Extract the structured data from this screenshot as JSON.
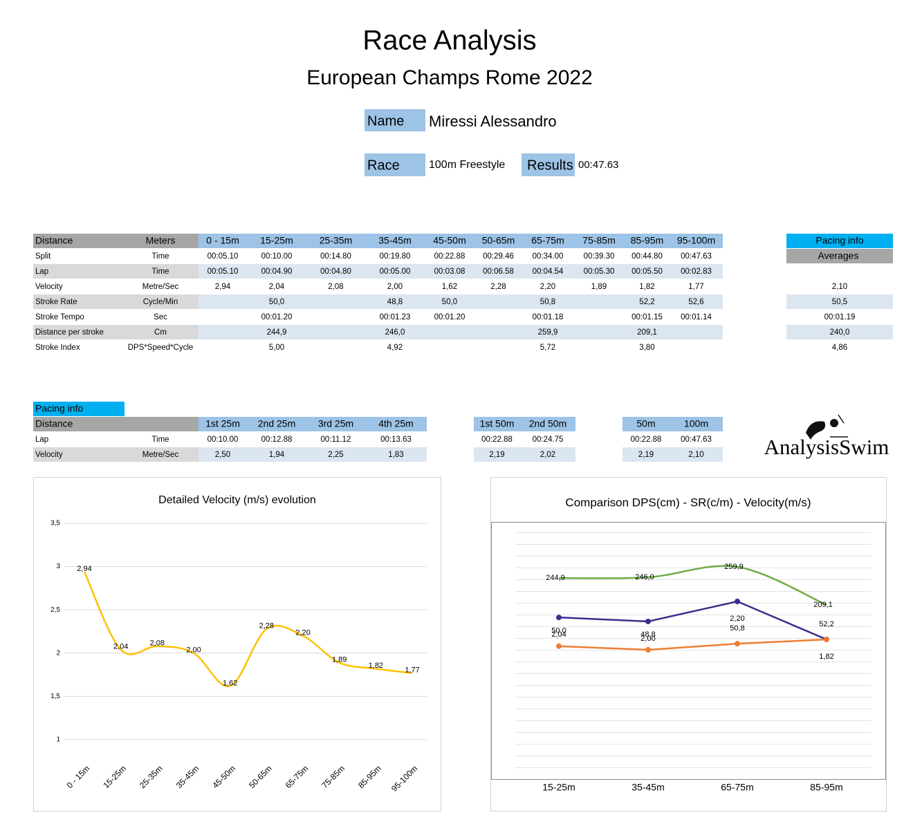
{
  "header": {
    "title": "Race Analysis",
    "subtitle": "European Champs Rome 2022"
  },
  "athlete": {
    "name_label": "Name",
    "name": "Miressi Alessandro",
    "race_label": "Race",
    "race": "100m Freestyle",
    "results_label": "Results",
    "results": "00:47.63"
  },
  "main_table": {
    "header": [
      "Distance",
      "Meters",
      "0 - 15m",
      "15-25m",
      "25-35m",
      "35-45m",
      "45-50m",
      "50-65m",
      "65-75m",
      "75-85m",
      "85-95m",
      "95-100m"
    ],
    "rows": [
      {
        "label": "Split",
        "unit": "Time",
        "cells": [
          "00:05.10",
          "00:10.00",
          "00:14.80",
          "00:19.80",
          "00:22.88",
          "00:29.46",
          "00:34.00",
          "00:39.30",
          "00:44.80",
          "00:47.63"
        ]
      },
      {
        "label": "Lap",
        "unit": "Time",
        "cells": [
          "00:05.10",
          "00:04.90",
          "00:04.80",
          "00:05.00",
          "00:03.08",
          "00:06.58",
          "00:04.54",
          "00:05.30",
          "00:05.50",
          "00:02.83"
        ]
      },
      {
        "label": "Velocity",
        "unit": "Metre/Sec",
        "cells": [
          "2,94",
          "2,04",
          "2,08",
          "2,00",
          "1,62",
          "2,28",
          "2,20",
          "1,89",
          "1,82",
          "1,77"
        ]
      },
      {
        "label": "Stroke Rate",
        "unit": "Cycle/Min",
        "cells": [
          null,
          "50,0",
          null,
          "48,8",
          "50,0",
          null,
          "50,8",
          null,
          "52,2",
          "52,6"
        ]
      },
      {
        "label": "Stroke Tempo",
        "unit": "Sec",
        "cells": [
          null,
          "00:01.20",
          null,
          "00:01.23",
          "00:01.20",
          null,
          "00:01.18",
          null,
          "00:01.15",
          "00:01.14"
        ]
      },
      {
        "label": "Distance per stroke",
        "unit": "Cm",
        "cells": [
          null,
          "244,9",
          null,
          "246,0",
          null,
          null,
          "259,9",
          null,
          "209,1",
          null
        ]
      },
      {
        "label": "Stroke Index",
        "unit": "DPS*Speed*Cycle",
        "cells": [
          null,
          "5,00",
          null,
          "4,92",
          null,
          null,
          "5,72",
          null,
          "3,80",
          null
        ]
      }
    ],
    "averages": {
      "title": "Pacing info",
      "subtitle": "Averages",
      "values": [
        null,
        null,
        "2,10",
        "50,5",
        "00:01.19",
        "240,0",
        "4,86"
      ]
    }
  },
  "pacing_table": {
    "title": "Pacing info",
    "header": {
      "label": "Distance",
      "quarters": [
        "1st 25m",
        "2nd 25m",
        "3rd 25m",
        "4th 25m"
      ],
      "halves": [
        "1st 50m",
        "2nd 50m"
      ],
      "totals": [
        "50m",
        "100m"
      ]
    },
    "rows": [
      {
        "label": "Lap",
        "unit": "Time",
        "quarters": [
          "00:10.00",
          "00:12.88",
          "00:11.12",
          "00:13.63"
        ],
        "halves": [
          "00:22.88",
          "00:24.75"
        ],
        "totals": [
          "00:22.88",
          "00:47.63"
        ]
      },
      {
        "label": "Velocity",
        "unit": "Metre/Sec",
        "quarters": [
          "2,50",
          "1,94",
          "2,25",
          "1,83"
        ],
        "halves": [
          "2,19",
          "2,02"
        ],
        "totals": [
          "2,19",
          "2,10"
        ]
      }
    ]
  },
  "logo": "AnalysisSwim",
  "chart_data": [
    {
      "type": "line",
      "title": "Detailed Velocity (m/s)  evolution",
      "categories": [
        "0 - 15m",
        "15-25m",
        "25-35m",
        "35-45m",
        "45-50m",
        "50-65m",
        "65-75m",
        "75-85m",
        "85-95m",
        "95-100m"
      ],
      "series": [
        {
          "color": "#ffc000",
          "smooth": true,
          "values": [
            2.94,
            2.04,
            2.08,
            2.0,
            1.62,
            2.28,
            2.2,
            1.89,
            1.82,
            1.77
          ],
          "value_labels": [
            "2,94",
            "2,04",
            "2,08",
            "2,00",
            "1,62",
            "2,28",
            "2,20",
            "1,89",
            "1,82",
            "1,77"
          ]
        }
      ],
      "ylim": [
        1,
        3.5
      ],
      "yticks": [
        1,
        {
          "value": 1.5,
          "label": "1,5"
        },
        2,
        {
          "value": 2.5,
          "label": "2,5"
        },
        3,
        {
          "value": 3.5,
          "label": "3,5"
        }
      ],
      "grid": true
    },
    {
      "type": "line",
      "title": "Comparison DPS(cm) - SR(c/m) - Velocity(m/s)",
      "categories": [
        "15-25m",
        "35-45m",
        "65-75m",
        "85-95m"
      ],
      "series": [
        {
          "color": "#70ad47",
          "smooth": true,
          "markers": false,
          "values": [
            244.9,
            246.0,
            259.9,
            209.1
          ],
          "value_labels": [
            "244,9",
            "246,0",
            "259,9",
            "209,1"
          ]
        },
        {
          "color": "#3f2a8c",
          "smooth": false,
          "markers": true,
          "values": [
            2.04,
            2.0,
            2.2,
            1.82
          ],
          "value_labels": [
            "2,04",
            "2,00",
            "2,20",
            "1,82"
          ]
        },
        {
          "color": "#ed7d31",
          "smooth": false,
          "markers": true,
          "values": [
            50.0,
            48.8,
            50.8,
            52.2
          ],
          "value_labels": [
            "50,0",
            "48,8",
            "50,8",
            "52,2"
          ]
        }
      ],
      "grid": true
    }
  ]
}
